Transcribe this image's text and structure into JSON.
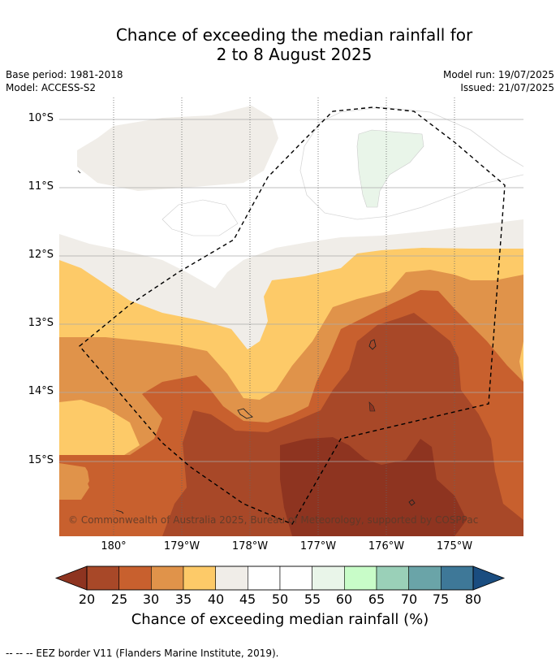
{
  "title": {
    "line1": "Chance of exceeding the median rainfall for",
    "line2": "2 to 8 August 2025"
  },
  "meta": {
    "base_period": "Base period: 1981-2018",
    "model": "Model: ACCESS-S2",
    "model_run": "Model run: 19/07/2025",
    "issued": "Issued: 21/07/2025"
  },
  "map": {
    "lat_labels": [
      "10°S",
      "11°S",
      "12°S",
      "13°S",
      "14°S",
      "15°S"
    ],
    "lon_labels": [
      "180°",
      "179°W",
      "178°W",
      "177°W",
      "176°W",
      "175°W"
    ],
    "copyright": "© Commonwealth of Australia 2025, Bureau of Meteorology, supported by COSPPac"
  },
  "colorbar": {
    "ticks": [
      "20",
      "25",
      "30",
      "35",
      "40",
      "45",
      "50",
      "55",
      "60",
      "65",
      "70",
      "75",
      "80"
    ],
    "colors": [
      "#a84828",
      "#c8602e",
      "#e0934a",
      "#fdca68",
      "#f0ede8",
      "#ffffff",
      "#ffffff",
      "#e9f5e9",
      "#c8fcc8",
      "#9ad0b8",
      "#6aa4a8",
      "#3e7898"
    ],
    "under_color": "#8e3420",
    "over_color": "#1a4d80",
    "title": "Chance of exceeding median rainfall (%)"
  },
  "footer": "--  --  -- EEZ border V11 (Flanders Marine Institute, 2019)."
}
